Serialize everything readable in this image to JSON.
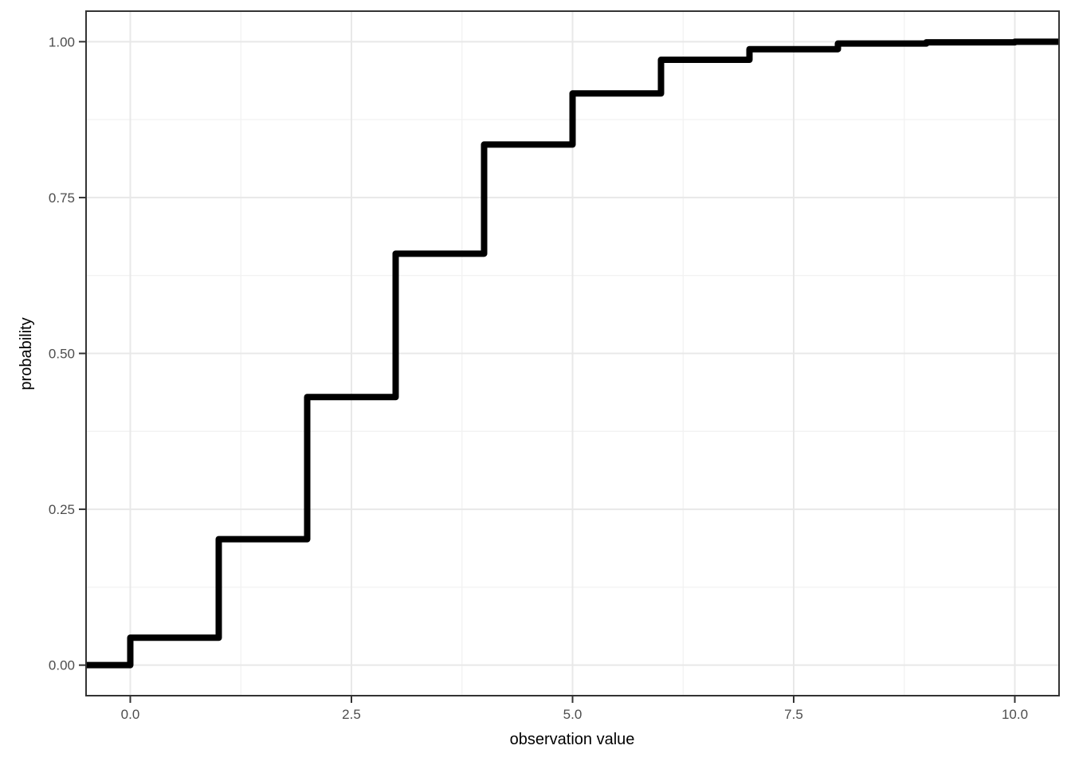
{
  "chart_data": {
    "type": "step",
    "subtype": "ecdf",
    "title": "",
    "xlabel": "observation value",
    "ylabel": "probability",
    "x": [
      0,
      1,
      2,
      3,
      4,
      5,
      6,
      7,
      8,
      9,
      10
    ],
    "cumulative_probability": [
      0.044,
      0.202,
      0.43,
      0.66,
      0.835,
      0.917,
      0.971,
      0.988,
      0.997,
      0.999,
      1.0
    ],
    "start_probability": 0.0,
    "xlim": [
      -0.5,
      10.5
    ],
    "ylim": [
      -0.049,
      1.049
    ],
    "x_ticks": {
      "values": [
        0,
        2.5,
        5,
        7.5,
        10
      ],
      "labels": [
        "0.0",
        "2.5",
        "5.0",
        "7.5",
        "10.0"
      ]
    },
    "y_ticks": {
      "values": [
        0,
        0.25,
        0.5,
        0.75,
        1
      ],
      "labels": [
        "0.00",
        "0.25",
        "0.50",
        "0.75",
        "1.00"
      ]
    },
    "x_minor_gridlines": [
      1.25,
      3.75,
      6.25,
      8.75
    ],
    "y_minor_gridlines": [
      0.125,
      0.375,
      0.625,
      0.875
    ],
    "grid": "on",
    "legend": "none",
    "colors": {
      "step_line": "#000000",
      "major_gridline": "#e8e8e8",
      "minor_gridline": "#f2f2f2",
      "panel_border": "#333333",
      "tick_mark": "#333333",
      "tick_label": "#4d4d4d",
      "axis_title": "#000000",
      "background": "#ffffff",
      "panel_background": "#ffffff"
    }
  }
}
